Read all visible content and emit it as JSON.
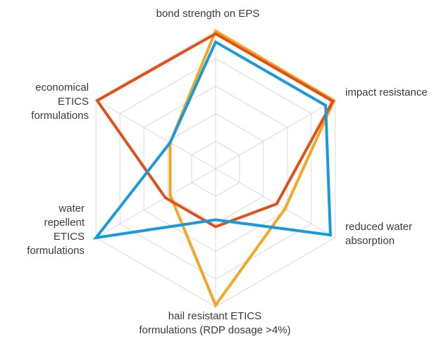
{
  "chart_data": {
    "type": "radar",
    "title": "",
    "axes": [
      "bond strength on EPS",
      "impact resistance",
      "reduced water absorption",
      "hail resistant ETICS formulations (RDP dosage >4%)",
      "water repellent ETICS formulations",
      "economical ETICS formulations"
    ],
    "axis_label_lines": [
      [
        "bond strength on EPS"
      ],
      [
        "impact resistance"
      ],
      [
        "reduced water",
        "absorption"
      ],
      [
        "hail resistant ETICS",
        "formulations (RDP dosage >4%)"
      ],
      [
        "water",
        "repellent",
        "ETICS",
        "formulations"
      ],
      [
        "economical",
        "ETICS",
        "formulations"
      ]
    ],
    "range": [
      0,
      5
    ],
    "grid_levels": 5,
    "grid": true,
    "legend": "none",
    "series": [
      {
        "color": "#f5a623",
        "values": [
          5,
          4.95,
          2.9,
          4.95,
          1.9,
          1.9
        ]
      },
      {
        "color": "#e0501a",
        "values": [
          4.9,
          4.9,
          2.55,
          2.1,
          2.1,
          4.95
        ]
      },
      {
        "color": "#1a9ad8",
        "values": [
          4.6,
          4.6,
          4.8,
          1.85,
          5,
          1.9
        ]
      }
    ],
    "colors": {
      "grid": "#d9d9d9",
      "label": "#3a3a3a"
    }
  }
}
